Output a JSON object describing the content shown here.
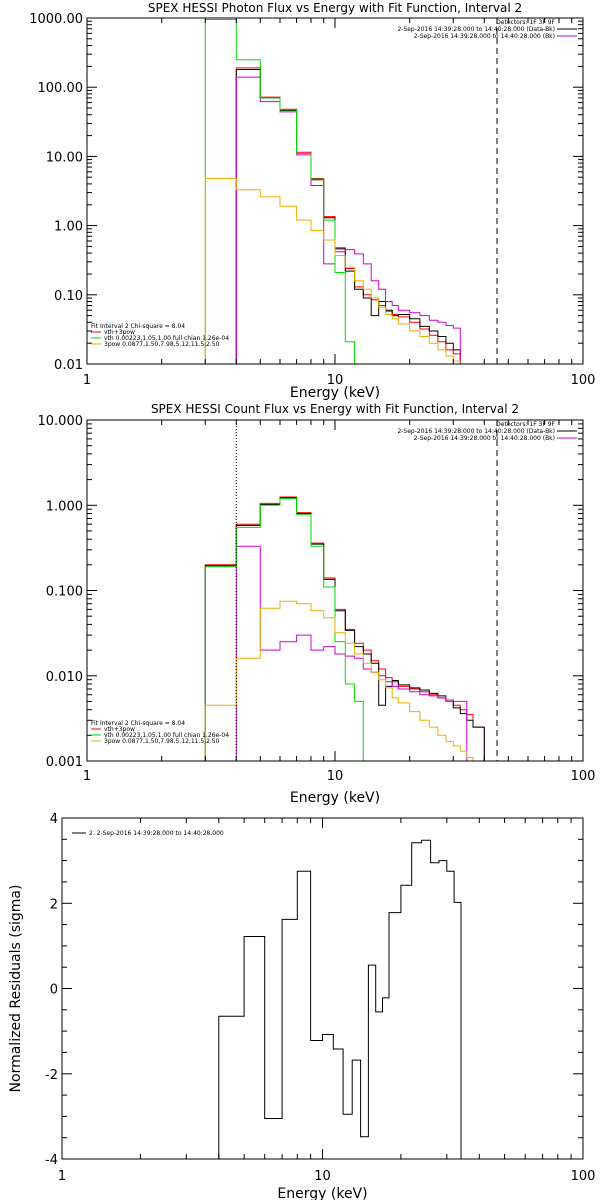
{
  "chart_data": [
    {
      "type": "line",
      "title": "SPEX HESSI Photon Flux vs Energy with Fit Function, Interval 2",
      "xlabel": "Energy (keV)",
      "ylabel": "",
      "xscale": "log",
      "yscale": "log",
      "xlim": [
        1,
        100
      ],
      "ylim": [
        0.01,
        1000
      ],
      "x_ticks": [
        1,
        10,
        100
      ],
      "x_tick_labels": [
        "1",
        "10",
        "100"
      ],
      "y_ticks": [
        0.01,
        0.1,
        1,
        10,
        100,
        1000
      ],
      "y_tick_labels": [
        "0.01",
        "0.10",
        "1.00",
        "10.00",
        "100.00",
        "1000.00"
      ],
      "bin_edges": [
        3,
        4,
        5,
        6,
        7,
        8,
        9,
        10,
        11,
        12,
        13,
        14,
        15,
        16,
        17,
        18,
        20,
        22,
        24,
        26,
        28,
        30,
        32,
        34,
        36,
        40,
        45
      ],
      "vertical_lines": [
        {
          "x": 45,
          "style": "dashed"
        }
      ],
      "legend_header": "Detectors: 1F 3F 9F",
      "legend_right": [
        {
          "label": "2-Sep-2016 14:39:28.000 to 14:40:28.000 (Data-Bk)",
          "color": "#000000"
        },
        {
          "label": "2-Sep-2016 14:39:28.000 to 14:40:28.000 (Bk)",
          "color": "#d000d0"
        }
      ],
      "legend_left_header": "Fit Interval 2   Chi-square = 8.04",
      "legend_left": [
        {
          "label": "vth+3pow",
          "color": "#ff0000"
        },
        {
          "label": "vth 0.00223,1.05,1.00   full chian 1.26e-04",
          "color": "#00dd00"
        },
        {
          "label": "3pow 0.0877,1.50,7.98,5.12,11.5,2.50",
          "color": "#e8b000"
        }
      ],
      "series": [
        {
          "color": "#ff0000",
          "start": 4,
          "values": [
            190,
            72,
            48,
            11.5,
            4.8,
            1.35,
            0.48,
            0.24,
            0.13,
            0.1,
            0.085,
            0.07,
            0.058,
            0.052,
            0.048,
            0.04,
            0.032,
            0.026,
            0.021,
            0.016,
            0.014
          ]
        },
        {
          "color": "#000000",
          "start": 4,
          "values": [
            180,
            70,
            46,
            11,
            4.6,
            1.3,
            0.46,
            0.22,
            0.12,
            0.09,
            0.05,
            0.08,
            0.06,
            0.05,
            0.052,
            0.045,
            0.035,
            0.03,
            0.025,
            0.02,
            0.016
          ]
        },
        {
          "color": "#d000d0",
          "start": 4,
          "values": [
            140,
            62,
            44,
            10.5,
            3.8,
            0.28,
            0.42,
            0.45,
            0.39,
            0.28,
            0.16,
            0.12,
            0.08,
            0.07,
            0.06,
            0.055,
            0.05,
            0.043,
            0.04,
            0.036,
            0.033
          ]
        },
        {
          "color": "#00dd00",
          "start": 3,
          "values": [
            950,
            250,
            70,
            47,
            11,
            4.7,
            1.2,
            0.21,
            0.021,
            0.003
          ]
        },
        {
          "color": "#e8b000",
          "start": 3,
          "values": [
            4.8,
            3.3,
            2.6,
            1.9,
            1.2,
            0.85,
            0.62,
            0.37,
            0.25,
            0.16,
            0.12,
            0.09,
            0.066,
            0.052,
            0.045,
            0.038,
            0.03,
            0.025,
            0.02,
            0.016,
            0.013,
            0.011,
            0.009
          ]
        }
      ]
    },
    {
      "type": "line",
      "title": "SPEX HESSI Count Flux vs Energy with Fit Function, Interval 2",
      "xlabel": "Energy (keV)",
      "ylabel": "",
      "xscale": "log",
      "yscale": "log",
      "xlim": [
        1,
        100
      ],
      "ylim": [
        0.001,
        10
      ],
      "x_ticks": [
        1,
        10,
        100
      ],
      "x_tick_labels": [
        "1",
        "10",
        "100"
      ],
      "y_ticks": [
        0.001,
        0.01,
        0.1,
        1,
        10
      ],
      "y_tick_labels": [
        "0.001",
        "0.010",
        "0.100",
        "1.000",
        "10.000"
      ],
      "bin_edges": [
        3,
        4,
        5,
        6,
        7,
        8,
        9,
        10,
        11,
        12,
        13,
        14,
        15,
        16,
        17,
        18,
        20,
        22,
        24,
        26,
        28,
        30,
        32,
        34,
        36,
        40,
        45
      ],
      "vertical_lines": [
        {
          "x": 4,
          "style": "dotted"
        },
        {
          "x": 45,
          "style": "dashed"
        }
      ],
      "legend_header": "Detectors: 1F 3F 9F",
      "legend_right": [
        {
          "label": "2-Sep-2016 14:39:28.000 to 14:40:28.000 (Data-Bk)",
          "color": "#000000"
        },
        {
          "label": "2-Sep-2016 14:39:28.000 to 14:40:28.000 (Bk)",
          "color": "#d000d0"
        }
      ],
      "legend_left_header": "Fit Interval 2   Chi-square = 8.04",
      "legend_left": [
        {
          "label": "vth+3pow",
          "color": "#ff0000"
        },
        {
          "label": "vth 0.00223,1.05,1.00   full chian 1.26e-04",
          "color": "#00dd00"
        },
        {
          "label": "3pow 0.0877,1.50,7.98,5.12,11.5,2.50",
          "color": "#e8b000"
        }
      ],
      "series": [
        {
          "color": "#ff0000",
          "start": 3,
          "values": [
            0.2,
            0.6,
            1.05,
            1.25,
            0.82,
            0.36,
            0.14,
            0.06,
            0.035,
            0.024,
            0.02,
            0.015,
            0.012,
            0.0095,
            0.0085,
            0.0075,
            0.007,
            0.0065,
            0.006,
            0.0055,
            0.005,
            0.0045,
            0.004,
            0.0035,
            0.0025
          ]
        },
        {
          "color": "#000000",
          "start": 3,
          "values": [
            0.195,
            0.58,
            1.02,
            1.22,
            0.8,
            0.35,
            0.135,
            0.058,
            0.034,
            0.022,
            0.018,
            0.014,
            0.0045,
            0.0075,
            0.0088,
            0.0078,
            0.0072,
            0.0068,
            0.0062,
            0.0058,
            0.0052,
            0.0042,
            0.0036,
            0.003,
            0.0025
          ]
        },
        {
          "color": "#d000d0",
          "start": 4,
          "values": [
            0.33,
            0.02,
            0.025,
            0.03,
            0.02,
            0.022,
            0.018,
            0.017,
            0.016,
            0.012,
            0.011,
            0.01,
            0.0085,
            0.0075,
            0.007,
            0.0065,
            0.006,
            0.0058,
            0.0055,
            0.0052,
            0.005,
            0.005
          ]
        },
        {
          "color": "#00dd00",
          "start": 3,
          "values": [
            0.19,
            0.55,
            1.0,
            1.2,
            0.78,
            0.33,
            0.11,
            0.025,
            0.008,
            0.005,
            0.0006
          ]
        },
        {
          "color": "#e8b000",
          "start": 3,
          "values": [
            0.0045,
            0.016,
            0.062,
            0.075,
            0.07,
            0.058,
            0.048,
            0.032,
            0.024,
            0.018,
            0.014,
            0.011,
            0.009,
            0.0072,
            0.0055,
            0.0048,
            0.0038,
            0.003,
            0.0025,
            0.002,
            0.0017,
            0.0015,
            0.0013,
            0.0011,
            0.0009
          ]
        }
      ]
    },
    {
      "type": "line",
      "title": "",
      "xlabel": "Energy (keV)",
      "ylabel": "Normalized Residuals (sigma)",
      "xscale": "log",
      "yscale": "linear",
      "xlim": [
        1,
        100
      ],
      "ylim": [
        -4,
        4
      ],
      "x_ticks": [
        1,
        10,
        100
      ],
      "x_tick_labels": [
        "1",
        "10",
        "100"
      ],
      "y_ticks": [
        -4,
        -2,
        0,
        2,
        4
      ],
      "y_tick_labels": [
        "-4",
        "-2",
        "0",
        "2",
        "4"
      ],
      "bin_edges": [
        4,
        5,
        6,
        7,
        8,
        9,
        10,
        11,
        12,
        13,
        14,
        15,
        16,
        17,
        18,
        20,
        22,
        24,
        26,
        28,
        30,
        32,
        34,
        36,
        40,
        45
      ],
      "legend_right": [],
      "legend_left": [
        {
          "label": "2.  2-Sep-2016 14:39:28.000 to 14:40:28.000",
          "color": "#000000"
        }
      ],
      "series": [
        {
          "color": "#000000",
          "start": 4,
          "values": [
            -0.65,
            1.22,
            -3.05,
            1.62,
            2.75,
            -1.22,
            -1.08,
            -1.42,
            -2.95,
            -1.68,
            -3.48,
            0.55,
            -0.55,
            -0.22,
            1.78,
            2.42,
            3.42,
            3.48,
            2.95,
            3.0,
            2.75,
            2.02
          ]
        }
      ]
    }
  ]
}
